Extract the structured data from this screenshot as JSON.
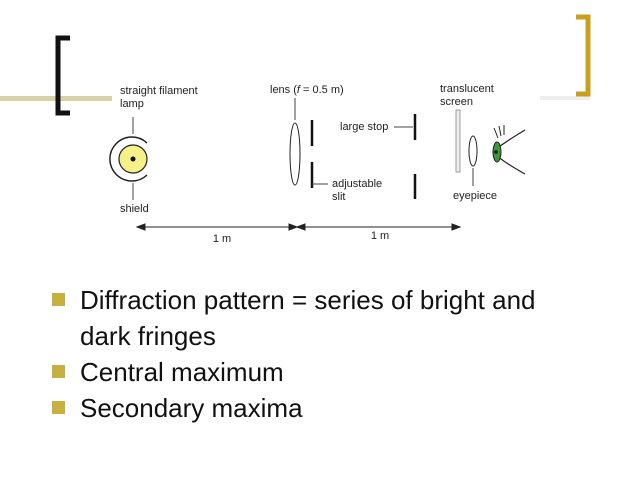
{
  "diagram": {
    "lamp": [
      "straight filament",
      "lamp"
    ],
    "shield": "shield",
    "lens": {
      "before": "lens (",
      "symbol": "f",
      "after": " = 0.5 m)"
    },
    "large_stop": "large stop",
    "slit": [
      "adjustable",
      "slit"
    ],
    "screen": [
      "translucent",
      "screen"
    ],
    "eyepiece": "eyepiece",
    "distances": [
      "1 m",
      "1 m"
    ]
  },
  "bullets": [
    "Diffraction pattern = series of bright and dark fringes",
    "Central maximum",
    "Secondary maxima"
  ]
}
